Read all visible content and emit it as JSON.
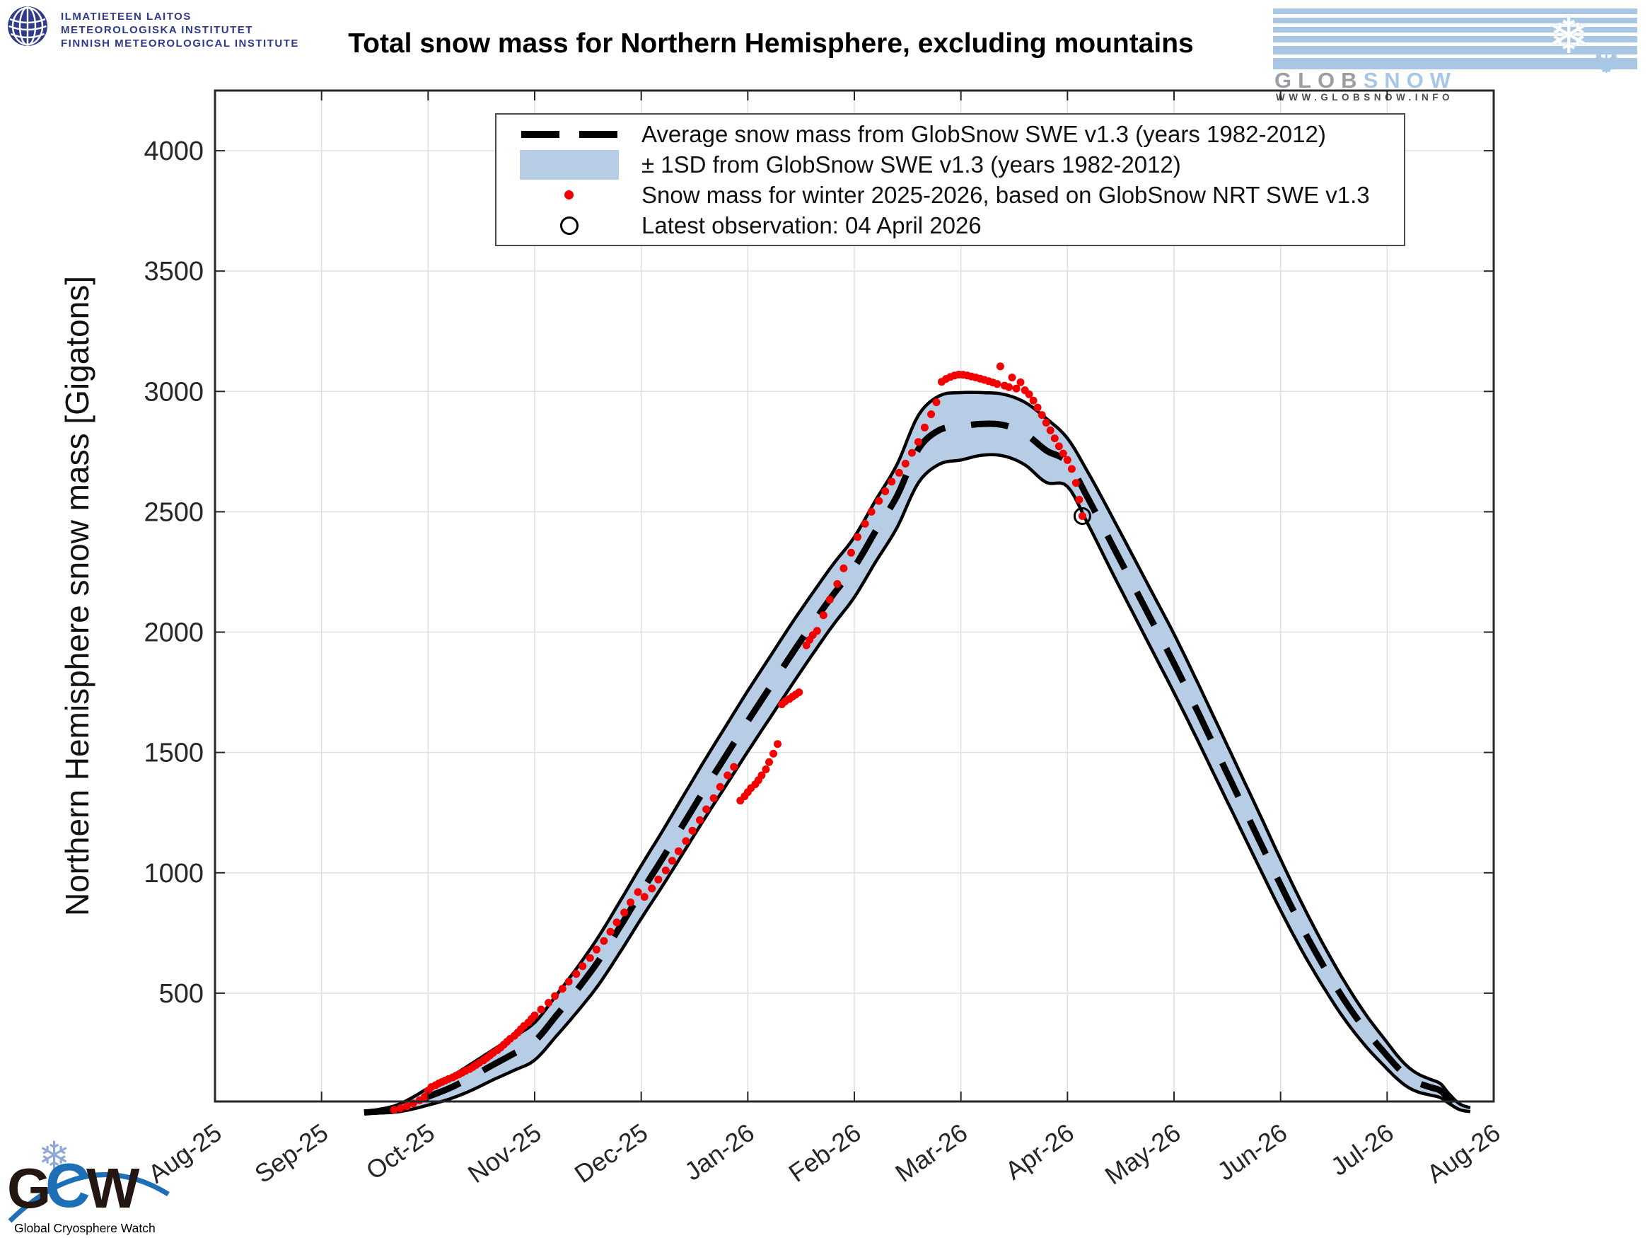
{
  "header": {
    "fmi_lines": [
      "ILMATIETEEN LAITOS",
      "METEOROLOGISKA INSTITUTET",
      "FINNISH METEOROLOGICAL INSTITUTE"
    ],
    "globsnow_brand_gray": "GLOB",
    "globsnow_brand_blue": "SNOW",
    "globsnow_url": "WWW.GLOBSNOW.INFO",
    "globsnow_flake_1": "❄",
    "globsnow_flake_2": "❆"
  },
  "footer": {
    "gcw_letter_g": "G",
    "gcw_letter_c": "C",
    "gcw_letter_w": "W",
    "gcw_flake": "❄",
    "gcw_caption": "Global Cryosphere Watch"
  },
  "legend": {
    "items": [
      {
        "marker": "dashed-line",
        "label": "Average snow mass from GlobSnow SWE v1.3 (years 1982-2012)"
      },
      {
        "marker": "band-patch",
        "label": "± 1SD from GlobSnow SWE v1.3 (years 1982-2012)"
      },
      {
        "marker": "red-dot",
        "label": "Snow mass for winter 2025-2026, based on GlobSnow NRT SWE v1.3"
      },
      {
        "marker": "open-circle",
        "label": "Latest observation: 04 April 2026"
      }
    ]
  },
  "chart_data": {
    "type": "line",
    "title": "Total snow mass for Northern Hemisphere, excluding mountains",
    "ylabel": "Northern Hemisphere snow mass [Gigatons]",
    "x_unit": "months since Aug-2025 tick (0 = Aug-25, 12 = Aug-26)",
    "x_tick_labels": [
      "Aug-25",
      "Sep-25",
      "Oct-25",
      "Nov-25",
      "Dec-25",
      "Jan-26",
      "Feb-26",
      "Mar-26",
      "Apr-26",
      "May-26",
      "Jun-26",
      "Jul-26",
      "Aug-26"
    ],
    "xlim": [
      0,
      12
    ],
    "yticks": [
      500,
      1000,
      1500,
      2000,
      2500,
      3000,
      3500,
      4000
    ],
    "ylim": [
      50,
      4250
    ],
    "grid": true,
    "legend_position": "upper-left-inside",
    "colors": {
      "band": "#b7cde6",
      "mean_line": "#000000",
      "band_edge": "#000000",
      "observations": "#f40000",
      "grid": "#e0e0e0",
      "axis": "#262626"
    },
    "climatology_columns": [
      "month_x",
      "mean_gigatons",
      "sd_gigatons"
    ],
    "climatology": [
      [
        1.4,
        4,
        4
      ],
      [
        1.55,
        10,
        8
      ],
      [
        1.7,
        20,
        14
      ],
      [
        1.85,
        42,
        24
      ],
      [
        2.0,
        70,
        35
      ],
      [
        2.2,
        105,
        45
      ],
      [
        2.4,
        150,
        55
      ],
      [
        2.6,
        200,
        62
      ],
      [
        2.8,
        248,
        70
      ],
      [
        3.0,
        300,
        78
      ],
      [
        3.2,
        405,
        85
      ],
      [
        3.4,
        515,
        92
      ],
      [
        3.6,
        635,
        100
      ],
      [
        3.8,
        775,
        106
      ],
      [
        4.0,
        920,
        110
      ],
      [
        4.2,
        1060,
        114
      ],
      [
        4.4,
        1205,
        118
      ],
      [
        4.6,
        1350,
        121
      ],
      [
        4.8,
        1490,
        124
      ],
      [
        5.0,
        1630,
        126
      ],
      [
        5.2,
        1765,
        127
      ],
      [
        5.4,
        1900,
        128
      ],
      [
        5.6,
        2030,
        127
      ],
      [
        5.8,
        2155,
        126
      ],
      [
        6.0,
        2270,
        125
      ],
      [
        6.2,
        2420,
        128
      ],
      [
        6.4,
        2565,
        131
      ],
      [
        6.6,
        2760,
        140
      ],
      [
        6.8,
        2840,
        142
      ],
      [
        7.0,
        2855,
        140
      ],
      [
        7.2,
        2865,
        130
      ],
      [
        7.4,
        2860,
        128
      ],
      [
        7.6,
        2825,
        130
      ],
      [
        7.8,
        2755,
        133
      ],
      [
        8.0,
        2705,
        100
      ],
      [
        8.2,
        2550,
        108
      ],
      [
        8.4,
        2380,
        115
      ],
      [
        8.6,
        2210,
        118
      ],
      [
        8.8,
        2040,
        120
      ],
      [
        9.0,
        1870,
        122
      ],
      [
        9.2,
        1690,
        120
      ],
      [
        9.4,
        1505,
        118
      ],
      [
        9.6,
        1320,
        115
      ],
      [
        9.8,
        1135,
        112
      ],
      [
        10.0,
        950,
        106
      ],
      [
        10.2,
        775,
        98
      ],
      [
        10.4,
        615,
        88
      ],
      [
        10.6,
        470,
        78
      ],
      [
        10.8,
        345,
        66
      ],
      [
        11.0,
        240,
        55
      ],
      [
        11.1,
        190,
        48
      ],
      [
        11.2,
        150,
        42
      ],
      [
        11.3,
        125,
        37
      ],
      [
        11.4,
        110,
        33
      ],
      [
        11.5,
        95,
        29
      ],
      [
        11.58,
        62,
        20
      ],
      [
        11.68,
        28,
        12
      ],
      [
        11.78,
        16,
        8
      ]
    ],
    "observations_columns": [
      "month_x",
      "gigatons"
    ],
    "observations": [
      [
        1.68,
        15
      ],
      [
        1.74,
        22
      ],
      [
        1.8,
        30
      ],
      [
        1.86,
        42
      ],
      [
        1.92,
        55
      ],
      [
        1.97,
        70
      ],
      [
        2.0,
        95
      ],
      [
        2.03,
        110
      ],
      [
        2.07,
        118
      ],
      [
        2.1,
        125
      ],
      [
        2.13,
        131
      ],
      [
        2.16,
        137
      ],
      [
        2.19,
        143
      ],
      [
        2.23,
        150
      ],
      [
        2.26,
        157
      ],
      [
        2.29,
        163
      ],
      [
        2.32,
        170
      ],
      [
        2.35,
        177
      ],
      [
        2.39,
        185
      ],
      [
        2.42,
        193
      ],
      [
        2.45,
        202
      ],
      [
        2.48,
        211
      ],
      [
        2.52,
        221
      ],
      [
        2.55,
        231
      ],
      [
        2.58,
        241
      ],
      [
        2.61,
        252
      ],
      [
        2.65,
        263
      ],
      [
        2.68,
        274
      ],
      [
        2.71,
        286
      ],
      [
        2.74,
        298
      ],
      [
        2.77,
        310
      ],
      [
        2.81,
        323
      ],
      [
        2.84,
        336
      ],
      [
        2.87,
        350
      ],
      [
        2.9,
        364
      ],
      [
        2.94,
        378
      ],
      [
        2.97,
        393
      ],
      [
        3.0,
        408
      ],
      [
        3.06,
        432
      ],
      [
        3.13,
        460
      ],
      [
        3.19,
        488
      ],
      [
        3.26,
        518
      ],
      [
        3.32,
        548
      ],
      [
        3.39,
        580
      ],
      [
        3.45,
        612
      ],
      [
        3.52,
        646
      ],
      [
        3.58,
        681
      ],
      [
        3.65,
        717
      ],
      [
        3.71,
        755
      ],
      [
        3.77,
        794
      ],
      [
        3.84,
        835
      ],
      [
        3.9,
        877
      ],
      [
        3.97,
        920
      ],
      [
        4.03,
        900
      ],
      [
        4.1,
        935
      ],
      [
        4.16,
        972
      ],
      [
        4.23,
        1010
      ],
      [
        4.29,
        1050
      ],
      [
        4.35,
        1090
      ],
      [
        4.42,
        1132
      ],
      [
        4.48,
        1175
      ],
      [
        4.55,
        1219
      ],
      [
        4.61,
        1264
      ],
      [
        4.68,
        1310
      ],
      [
        4.74,
        1357
      ],
      [
        4.81,
        1405
      ],
      [
        4.87,
        1440
      ],
      [
        4.93,
        1300
      ],
      [
        4.97,
        1318
      ],
      [
        5.0,
        1335
      ],
      [
        5.03,
        1352
      ],
      [
        5.07,
        1368
      ],
      [
        5.1,
        1385
      ],
      [
        5.13,
        1405
      ],
      [
        5.17,
        1430
      ],
      [
        5.2,
        1460
      ],
      [
        5.24,
        1495
      ],
      [
        5.28,
        1535
      ],
      [
        5.32,
        1700
      ],
      [
        5.35,
        1712
      ],
      [
        5.39,
        1722
      ],
      [
        5.42,
        1732
      ],
      [
        5.45,
        1741
      ],
      [
        5.48,
        1750
      ],
      [
        5.55,
        1945
      ],
      [
        5.58,
        1968
      ],
      [
        5.61,
        1988
      ],
      [
        5.65,
        2005
      ],
      [
        5.71,
        2070
      ],
      [
        5.77,
        2135
      ],
      [
        5.84,
        2200
      ],
      [
        5.9,
        2265
      ],
      [
        5.97,
        2330
      ],
      [
        6.03,
        2395
      ],
      [
        6.1,
        2450
      ],
      [
        6.16,
        2500
      ],
      [
        6.23,
        2545
      ],
      [
        6.29,
        2585
      ],
      [
        6.35,
        2625
      ],
      [
        6.42,
        2662
      ],
      [
        6.48,
        2700
      ],
      [
        6.54,
        2745
      ],
      [
        6.6,
        2790
      ],
      [
        6.66,
        2850
      ],
      [
        6.72,
        2905
      ],
      [
        6.77,
        2955
      ],
      [
        6.82,
        3040
      ],
      [
        6.86,
        3052
      ],
      [
        6.9,
        3060
      ],
      [
        6.94,
        3066
      ],
      [
        6.98,
        3070
      ],
      [
        7.02,
        3069
      ],
      [
        7.06,
        3066
      ],
      [
        7.1,
        3062
      ],
      [
        7.14,
        3058
      ],
      [
        7.18,
        3053
      ],
      [
        7.22,
        3048
      ],
      [
        7.26,
        3043
      ],
      [
        7.3,
        3037
      ],
      [
        7.34,
        3031
      ],
      [
        7.37,
        3104
      ],
      [
        7.41,
        3024
      ],
      [
        7.45,
        3018
      ],
      [
        7.48,
        3058
      ],
      [
        7.52,
        3012
      ],
      [
        7.56,
        3038
      ],
      [
        7.6,
        3005
      ],
      [
        7.64,
        2988
      ],
      [
        7.68,
        2962
      ],
      [
        7.72,
        2933
      ],
      [
        7.76,
        2902
      ],
      [
        7.8,
        2870
      ],
      [
        7.84,
        2838
      ],
      [
        7.88,
        2805
      ],
      [
        7.92,
        2772
      ],
      [
        7.96,
        2742
      ],
      [
        8.0,
        2715
      ],
      [
        8.04,
        2678
      ],
      [
        8.08,
        2620
      ],
      [
        8.11,
        2550
      ],
      [
        8.14,
        2482
      ]
    ],
    "latest_observation": {
      "month_x": 8.14,
      "gigatons": 2482,
      "date_label": "04 April 2026"
    }
  }
}
